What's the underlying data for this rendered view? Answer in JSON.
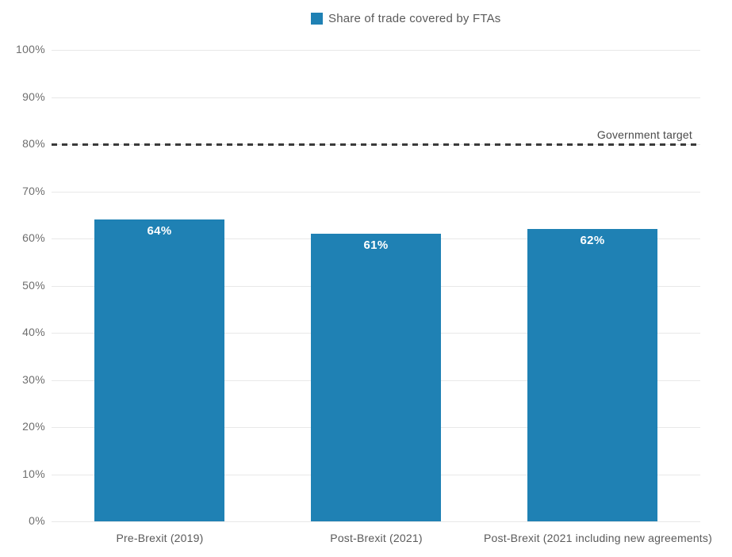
{
  "legend": {
    "label": "Share of trade covered by FTAs",
    "swatch_color": "#1f81b4"
  },
  "target_line": {
    "label": "Government target",
    "value": 80,
    "style": "dashed",
    "color": "#3a3a3a"
  },
  "chart_data": {
    "type": "bar",
    "title": "",
    "xlabel": "",
    "ylabel": "",
    "categories": [
      "Pre-Brexit (2019)",
      "Post-Brexit (2021)",
      "Post-Brexit (2021 including new agreements)"
    ],
    "series": [
      {
        "name": "Share of trade covered by FTAs",
        "values": [
          64,
          61,
          62
        ],
        "value_labels": [
          "64%",
          "61%",
          "62%"
        ]
      }
    ],
    "ylim": [
      0,
      100
    ],
    "ytick_step": 10,
    "ytick_labels": [
      "0%",
      "10%",
      "20%",
      "30%",
      "40%",
      "50%",
      "60%",
      "70%",
      "80%",
      "90%",
      "100%"
    ],
    "grid": true,
    "legend_position": "top-center",
    "bar_color": "#1f81b4",
    "annotations": [
      {
        "type": "hline",
        "y": 80,
        "label": "Government target",
        "style": "dashed"
      }
    ]
  },
  "colors": {
    "bar": "#1f81b4",
    "gridline": "#e8e8e8",
    "ytick_text": "#6e6e6e",
    "xtick_text": "#5a5a5a",
    "value_text": "#ffffff",
    "target_line": "#3a3a3a",
    "target_text": "#4a4a4a",
    "background": "#ffffff"
  }
}
